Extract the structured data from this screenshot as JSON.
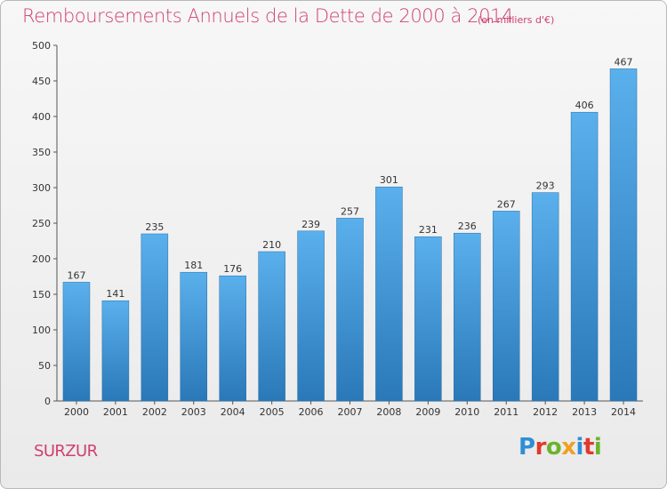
{
  "chart_data": {
    "type": "bar",
    "title": "Remboursements Annuels de la Dette de 2000 à 2014",
    "subtitle": "(en milliers d'€)",
    "categories": [
      "2000",
      "2001",
      "2002",
      "2003",
      "2004",
      "2005",
      "2006",
      "2007",
      "2008",
      "2009",
      "2010",
      "2011",
      "2012",
      "2013",
      "2014"
    ],
    "values": [
      167,
      141,
      235,
      181,
      176,
      210,
      239,
      257,
      301,
      231,
      236,
      267,
      293,
      406,
      467
    ],
    "ylim": [
      0,
      500
    ],
    "yticks": [
      0,
      50,
      100,
      150,
      200,
      250,
      300,
      350,
      400,
      450,
      500
    ],
    "grid": false,
    "bar_color": "#3f95d6"
  },
  "footer": {
    "city": "SURZUR",
    "logo_letters": [
      "P",
      "r",
      "o",
      "x",
      "i",
      "t",
      "i"
    ],
    "logo_colors": [
      "#2e8fd6",
      "#e2382b",
      "#6bb32e",
      "#f0a020",
      "#2e8fd6",
      "#e2382b",
      "#6bb32e"
    ]
  }
}
